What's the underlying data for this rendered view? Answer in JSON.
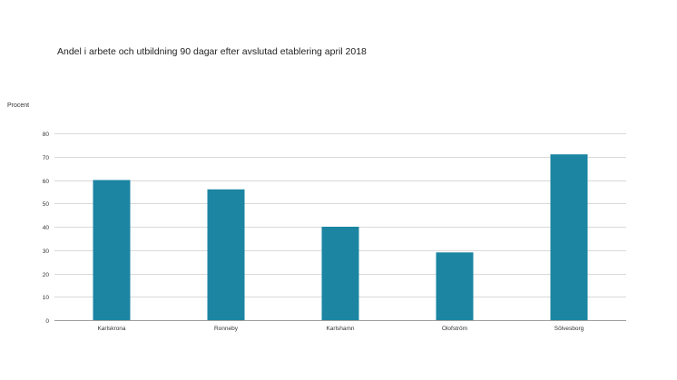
{
  "chart_data": {
    "type": "bar",
    "title": "Andel i arbete och utbildning 90 dagar efter avslutad etablering april 2018",
    "xlabel": "",
    "ylabel": "Procent",
    "categories": [
      "Karlskrona",
      "Ronneby",
      "Karlshamn",
      "Olofström",
      "Sölvesborg"
    ],
    "values": [
      60,
      56,
      40,
      29,
      71
    ],
    "ylim": [
      0,
      80
    ],
    "yticks": [
      0,
      10,
      20,
      30,
      40,
      50,
      60,
      70,
      80
    ],
    "grid": true,
    "legend": "none",
    "colors": {
      "bar": "#1b85a2"
    }
  }
}
